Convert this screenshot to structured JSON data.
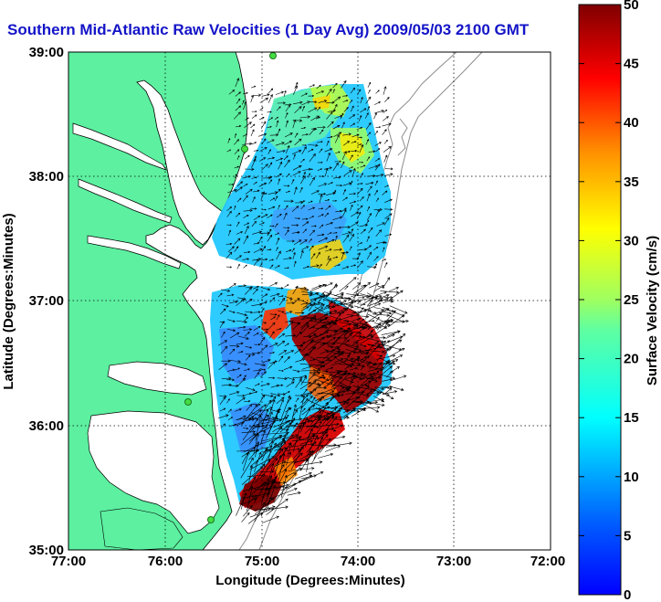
{
  "title": "Southern Mid-Atlantic Raw Velocities (1 Day Avg) 2009/05/03 2100 GMT",
  "axes": {
    "xlabel": "Longitude (Degrees:Minutes)",
    "ylabel": "Latitude (Degrees:Minutes)",
    "x_ticks": [
      "77:00",
      "76:00",
      "75:00",
      "74:00",
      "73:00",
      "72:00"
    ],
    "y_ticks": [
      "39:00",
      "38:00",
      "37:00",
      "36:00",
      "35:00"
    ],
    "x_range_deg_west": [
      77,
      72
    ],
    "y_range_deg_north": [
      35,
      39
    ],
    "grid": "dotted"
  },
  "colorbar": {
    "label": "Surface Velocity (cm/s)",
    "ticks": [
      "50",
      "45",
      "40",
      "35",
      "30",
      "25",
      "20",
      "15",
      "10",
      "5",
      "0"
    ],
    "range": [
      0,
      50
    ],
    "colormap": "jet"
  },
  "colors": {
    "land": "#5cf0a0",
    "water": "#ffffff",
    "coastline": "#000000",
    "bathymetry": "#909090",
    "title": "#1414c8",
    "station": "#44dd44"
  }
}
